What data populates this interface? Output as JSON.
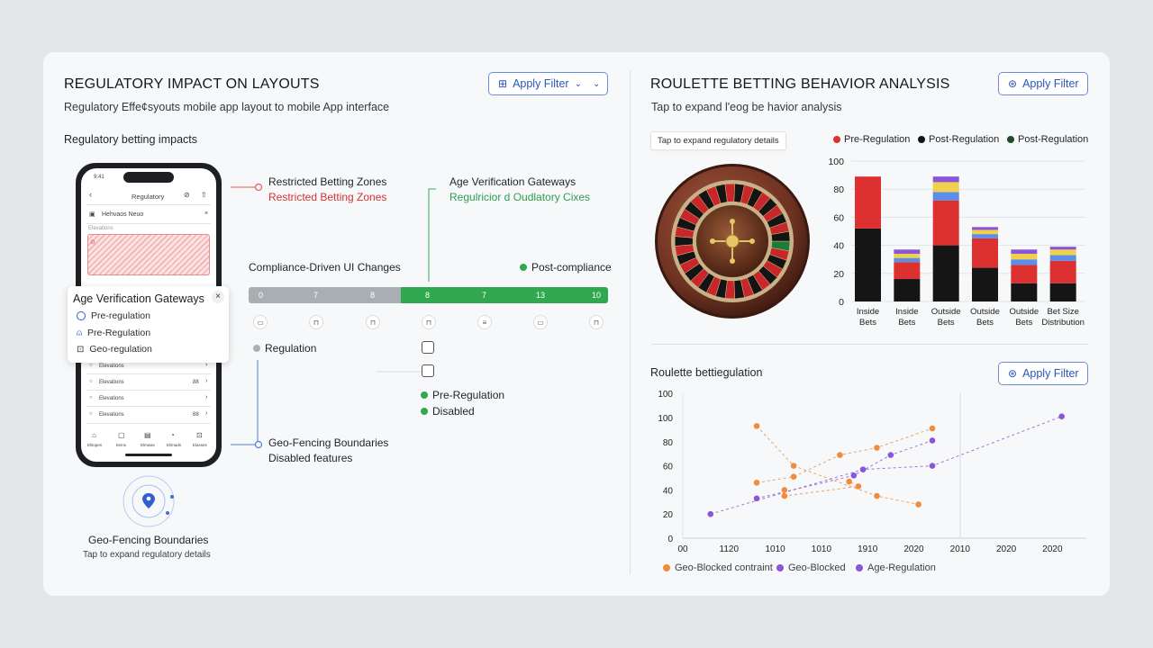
{
  "left": {
    "title": "REGULATORY IMPACT ON LAYOUTS",
    "subtitle": "Regulatory Effe¢syouts mobile app layout to mobile App interface",
    "filter_label": "Apply Filter",
    "section_label": "Regulatory betting impacts",
    "phone": {
      "status": "9:41",
      "header": "Regulatory",
      "notice": "Hehvaos Neuo",
      "section": "Elevations",
      "rows": [
        "Elevations",
        "Elevations",
        "Elevations",
        "Elevations"
      ],
      "row_badges": [
        "",
        "88",
        "",
        "88"
      ],
      "tabs": [
        "Elitopes",
        "Items",
        "Elmwas",
        "Elimads",
        "Elasses"
      ]
    },
    "popup": {
      "title": "Age Verification Gateways",
      "items": [
        "Pre-regulation",
        "Pre-Regulation",
        "Geo-regulation"
      ]
    },
    "callouts": {
      "restricted_title": "Restricted Betting Zones",
      "restricted_sub": "Restricted Betting Zones",
      "age_title": "Age Verification Gateways",
      "age_sub": "Regulricior d Oudlatory Cixes",
      "geo_title": "Geo-Fencing Boundaries",
      "geo_sub": "Disabled features"
    },
    "timeline": {
      "title": "Compliance-Driven UI Changes",
      "legend_post": "Post-compliance",
      "gray_labels": [
        "0",
        "7",
        "8"
      ],
      "green_labels": [
        "8",
        "7",
        "13",
        "10"
      ],
      "regulation_label": "Regulation",
      "legend_pre": "Pre-Regulation",
      "legend_disabled": "Disabled"
    },
    "geo_badge": {
      "title": "Geo-Fencing Boundaries",
      "sub": "Tap to expand regulatory details"
    }
  },
  "right": {
    "title": "ROULETTE BETTING BEHAVIOR ANALYSIS",
    "subtitle": "Tap to expand l'eog be havior analysis",
    "filter_label": "Apply Filter",
    "tooltip": "Tap to expand regulatory details",
    "section2_title": "Roulette bettiegulation",
    "filter2_label": "Apply Filter"
  },
  "colors": {
    "red": "#dd3030",
    "black": "#151515",
    "dark_green": "#1f4d2b",
    "blue": "#5b8ee6",
    "yellow": "#f1d04c",
    "purple": "#8a55d8",
    "orange": "#f08c3c",
    "accent_green": "#2fa84f"
  },
  "chart_data": [
    {
      "type": "bar",
      "categories": [
        "Inside Bets",
        "Inside Bets",
        "Outside Bets",
        "Outside Bets",
        "Outside Bets",
        "Bet Size Distribution"
      ],
      "series": [
        {
          "name": "Post-Regulation",
          "values": [
            52,
            16,
            40,
            24,
            13,
            13
          ]
        },
        {
          "name": "Pre-Regulation",
          "values": [
            37,
            12,
            32,
            21,
            13,
            16
          ]
        },
        {
          "values": [
            0,
            3,
            6,
            3,
            4,
            4
          ]
        },
        {
          "values": [
            0,
            3,
            7,
            3,
            4,
            4
          ]
        },
        {
          "values": [
            0,
            3,
            4,
            2,
            3,
            2
          ]
        }
      ],
      "legend": [
        "Pre-Regulation",
        "Post-Regulation",
        "Post-Regulation"
      ],
      "ylim": [
        0,
        100
      ],
      "yticks": [
        0,
        20,
        40,
        60,
        80,
        100
      ]
    },
    {
      "type": "scatter",
      "x_ticks": [
        "00",
        "1120",
        "1010",
        "1010",
        "1910",
        "2020",
        "2010",
        "2020",
        "2020"
      ],
      "y_ticks": [
        "0",
        "20",
        "40",
        "60",
        "80",
        "100",
        "100"
      ],
      "legend": [
        "Geo-Blocked contraint",
        "Geo-Blocked",
        "Age-Regulation"
      ],
      "series": [
        {
          "name": "Geo-Blocked contraint",
          "color": "orange",
          "points": [
            [
              1.6,
              93
            ],
            [
              2.4,
              60
            ],
            [
              4.2,
              35
            ],
            [
              5.1,
              28
            ]
          ]
        },
        {
          "name": "Geo-Blocked contraint",
          "color": "orange",
          "points": [
            [
              1.6,
              46
            ],
            [
              2.4,
              51
            ],
            [
              3.4,
              69
            ],
            [
              4.2,
              75
            ],
            [
              5.4,
              91
            ]
          ]
        },
        {
          "name": "Geo-Blocked",
          "color": "purple",
          "points": [
            [
              1.6,
              33
            ],
            [
              3.7,
              52
            ],
            [
              4.5,
              69
            ],
            [
              5.4,
              81
            ]
          ]
        },
        {
          "name": "Age-Regulation",
          "color": "purple",
          "points": [
            [
              0.6,
              20
            ],
            [
              3.9,
              57
            ],
            [
              5.4,
              60
            ],
            [
              8.2,
              101
            ]
          ]
        },
        {
          "name": "Geo-Blocked contraint",
          "color": "orange",
          "points": [
            [
              2.2,
              40
            ],
            [
              2.2,
              35
            ],
            [
              3.8,
              43
            ],
            [
              3.6,
              47
            ]
          ]
        }
      ]
    }
  ]
}
